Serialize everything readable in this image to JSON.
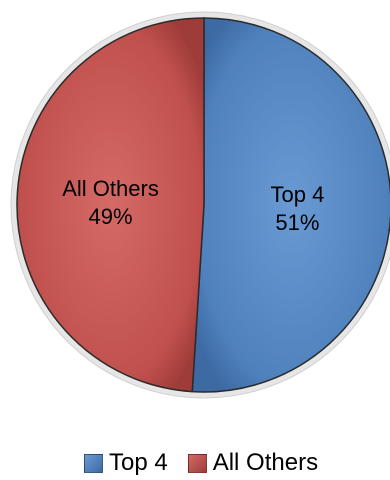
{
  "chart_data": {
    "type": "pie",
    "title": "",
    "categories": [
      "Top 4",
      "All Others"
    ],
    "values": [
      51,
      49
    ],
    "labels": [
      {
        "name": "Top 4",
        "percent": "51%"
      },
      {
        "name": "All Others",
        "percent": "49%"
      }
    ],
    "colors": [
      "#4f81bd",
      "#c0504d"
    ],
    "legend_placement": "bottom",
    "start_angle_deg": 0,
    "direction": "clockwise"
  },
  "legend": {
    "items": [
      {
        "label": "Top 4",
        "color": "#4f81bd"
      },
      {
        "label": "All Others",
        "color": "#c0504d"
      }
    ]
  }
}
